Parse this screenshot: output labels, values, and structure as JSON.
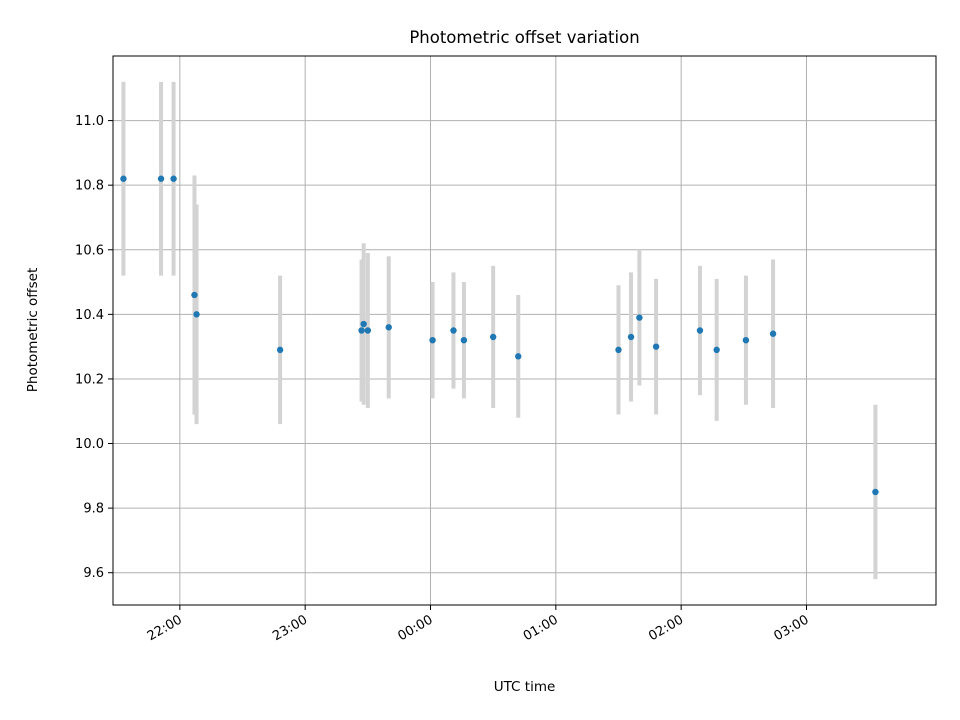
{
  "chart_data": {
    "type": "scatter",
    "title": "Photometric offset variation",
    "xlabel": "UTC time",
    "ylabel": "Photometric offset",
    "x_tick_labels": [
      "22:00",
      "23:00",
      "00:00",
      "01:00",
      "02:00",
      "03:00"
    ],
    "x_tick_times": [
      "22:00",
      "23:00",
      "00:00",
      "01:00",
      "02:00",
      "03:00"
    ],
    "y_ticks": [
      9.6,
      9.8,
      10.0,
      10.2,
      10.4,
      10.6,
      10.8,
      11.0
    ],
    "y_tick_labels": [
      "9.6",
      "9.8",
      "10.0",
      "10.2",
      "10.4",
      "10.6",
      "10.8",
      "11.0"
    ],
    "xlim": [
      "21:28",
      "04:02"
    ],
    "ylim": [
      9.5,
      11.2
    ],
    "grid": true,
    "colors": {
      "points": "#1f77b4",
      "errorbars": "#d3d3d3",
      "grid": "#b0b0b0"
    },
    "points": [
      {
        "time": "21:33",
        "y": 10.82,
        "err": 0.3
      },
      {
        "time": "21:51",
        "y": 10.82,
        "err": 0.3
      },
      {
        "time": "21:57",
        "y": 10.82,
        "err": 0.3
      },
      {
        "time": "22:07",
        "y": 10.46,
        "err": 0.37
      },
      {
        "time": "22:08",
        "y": 10.4,
        "err": 0.34
      },
      {
        "time": "22:48",
        "y": 10.29,
        "err": 0.23
      },
      {
        "time": "23:27",
        "y": 10.35,
        "err": 0.22
      },
      {
        "time": "23:28",
        "y": 10.37,
        "err": 0.25
      },
      {
        "time": "23:30",
        "y": 10.35,
        "err": 0.24
      },
      {
        "time": "23:40",
        "y": 10.36,
        "err": 0.22
      },
      {
        "time": "00:01",
        "y": 10.32,
        "err": 0.18
      },
      {
        "time": "00:11",
        "y": 10.35,
        "err": 0.18
      },
      {
        "time": "00:16",
        "y": 10.32,
        "err": 0.18
      },
      {
        "time": "00:30",
        "y": 10.33,
        "err": 0.22
      },
      {
        "time": "00:42",
        "y": 10.27,
        "err": 0.19
      },
      {
        "time": "01:30",
        "y": 10.29,
        "err": 0.2
      },
      {
        "time": "01:36",
        "y": 10.33,
        "err": 0.2
      },
      {
        "time": "01:40",
        "y": 10.39,
        "err": 0.21
      },
      {
        "time": "01:48",
        "y": 10.3,
        "err": 0.21
      },
      {
        "time": "02:09",
        "y": 10.35,
        "err": 0.2
      },
      {
        "time": "02:17",
        "y": 10.29,
        "err": 0.22
      },
      {
        "time": "02:31",
        "y": 10.32,
        "err": 0.2
      },
      {
        "time": "02:44",
        "y": 10.34,
        "err": 0.23
      },
      {
        "time": "03:33",
        "y": 9.85,
        "err": 0.27
      }
    ]
  }
}
